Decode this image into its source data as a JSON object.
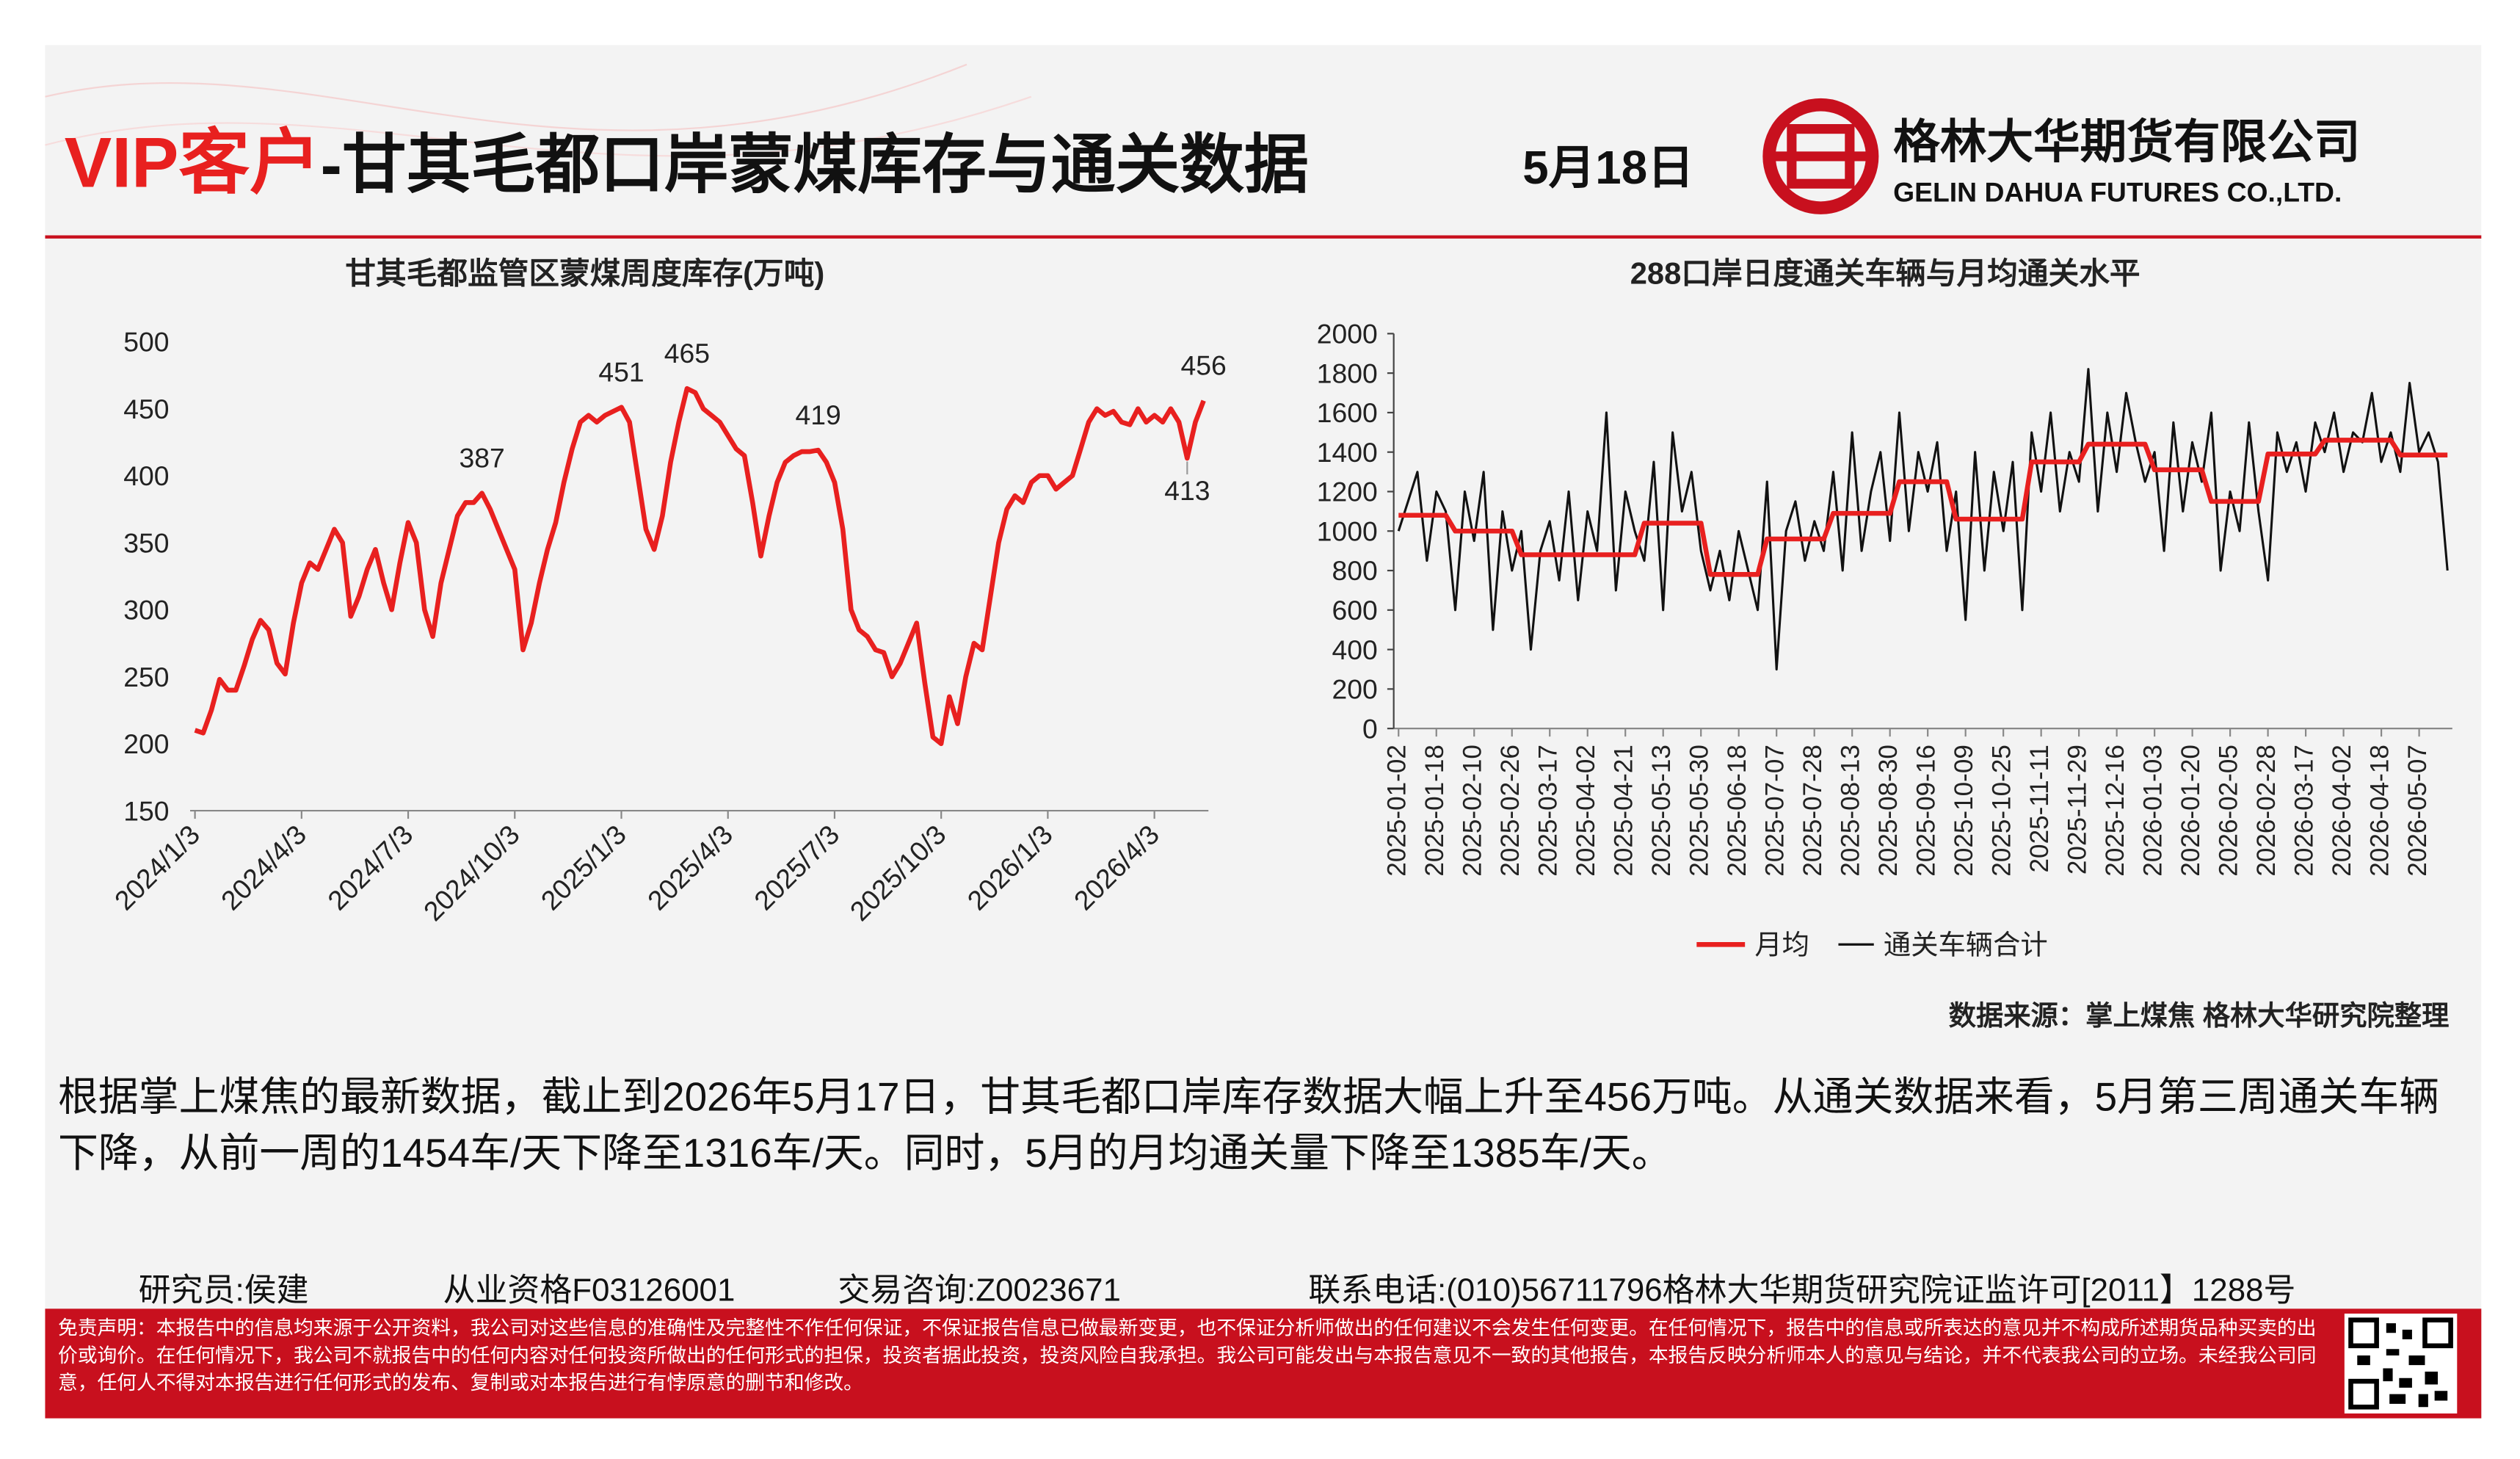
{
  "header": {
    "title_highlight": "VIP客户",
    "title": "-甘其毛都口岸蒙煤库存与通关数据",
    "date": "5月18日",
    "company": "格林大华期货有限公司",
    "company_en": "GELIN DAHUA FUTURES CO.,LTD."
  },
  "chart_data": [
    {
      "type": "line",
      "title": "甘其毛都监管区蒙煤周度库存(万吨)",
      "categories": [
        "2024/1/3",
        null,
        null,
        null,
        null,
        null,
        null,
        null,
        null,
        null,
        null,
        null,
        null,
        "2024/4/3",
        null,
        null,
        null,
        null,
        null,
        null,
        null,
        null,
        null,
        null,
        null,
        null,
        "2024/7/3",
        null,
        null,
        null,
        null,
        null,
        null,
        null,
        null,
        null,
        null,
        null,
        null,
        "2024/10/3",
        null,
        null,
        null,
        null,
        null,
        null,
        null,
        null,
        null,
        null,
        null,
        null,
        "2025/1/3",
        null,
        null,
        null,
        null,
        null,
        null,
        null,
        null,
        null,
        null,
        null,
        null,
        "2025/4/3",
        null,
        null,
        null,
        null,
        null,
        null,
        null,
        null,
        null,
        null,
        null,
        null,
        "2025/7/3",
        null,
        null,
        null,
        null,
        null,
        null,
        null,
        null,
        null,
        null,
        null,
        null,
        "2025/10/3",
        null,
        null,
        null,
        null,
        null,
        null,
        null,
        null,
        null,
        null,
        null,
        null,
        "2026/1/3",
        null,
        null,
        null,
        null,
        null,
        null,
        null,
        null,
        null,
        null,
        null,
        null,
        "2026/4/3",
        null,
        null,
        null,
        null,
        null,
        null
      ],
      "series": [
        {
          "color": "#e8201f",
          "values": [
            210,
            208,
            225,
            248,
            240,
            240,
            258,
            278,
            292,
            285,
            260,
            252,
            290,
            320,
            335,
            330,
            345,
            360,
            350,
            295,
            310,
            330,
            345,
            320,
            300,
            335,
            365,
            350,
            300,
            280,
            320,
            345,
            370,
            380,
            380,
            387,
            375,
            360,
            345,
            330,
            270,
            290,
            320,
            345,
            365,
            395,
            420,
            440,
            445,
            440,
            445,
            448,
            451,
            440,
            400,
            360,
            345,
            370,
            410,
            440,
            465,
            462,
            450,
            445,
            440,
            430,
            420,
            415,
            380,
            340,
            370,
            395,
            410,
            415,
            418,
            418,
            419,
            410,
            395,
            360,
            300,
            285,
            280,
            270,
            268,
            250,
            260,
            275,
            290,
            245,
            205,
            200,
            235,
            215,
            250,
            275,
            270,
            310,
            350,
            375,
            385,
            380,
            395,
            400,
            400,
            390,
            395,
            400,
            420,
            440,
            450,
            445,
            448,
            440,
            438,
            450,
            440,
            445,
            440,
            450,
            440,
            413,
            440,
            456
          ]
        }
      ],
      "ylim": [
        150,
        500
      ],
      "yticks": [
        150,
        200,
        250,
        300,
        350,
        400,
        450,
        500
      ]
    },
    {
      "type": "line",
      "title": "288口岸日度通关车辆与月均通关水平",
      "categories": [
        "2025-01-02",
        null,
        null,
        null,
        "2025-01-18",
        null,
        null,
        null,
        "2025-02-10",
        null,
        null,
        null,
        "2025-02-26",
        null,
        null,
        null,
        "2025-03-17",
        null,
        null,
        null,
        "2025-04-02",
        null,
        null,
        null,
        "2025-04-21",
        null,
        null,
        null,
        "2025-05-13",
        null,
        null,
        null,
        "2025-05-30",
        null,
        null,
        null,
        "2025-06-18",
        null,
        null,
        null,
        "2025-07-07",
        null,
        null,
        null,
        "2025-07-28",
        null,
        null,
        null,
        "2025-08-13",
        null,
        null,
        null,
        "2025-08-30",
        null,
        null,
        null,
        "2025-09-16",
        null,
        null,
        null,
        "2025-10-09",
        null,
        null,
        null,
        "2025-10-25",
        null,
        null,
        null,
        "2025-11-11",
        null,
        null,
        null,
        "2025-11-29",
        null,
        null,
        null,
        "2025-12-16",
        null,
        null,
        null,
        "2026-01-03",
        null,
        null,
        null,
        "2026-01-20",
        null,
        null,
        null,
        "2026-02-05",
        null,
        null,
        null,
        "2026-02-28",
        null,
        null,
        null,
        "2026-03-17",
        null,
        null,
        null,
        "2026-04-02",
        null,
        null,
        null,
        "2026-04-18",
        null,
        null,
        null,
        "2026-05-07",
        null,
        null,
        null
      ],
      "series": [
        {
          "name": "月均",
          "color": "#e8201f",
          "values": [
            1080,
            1080,
            1080,
            1080,
            1080,
            1080,
            1000,
            1000,
            1000,
            1000,
            1000,
            1000,
            1000,
            880,
            880,
            880,
            880,
            880,
            880,
            880,
            880,
            880,
            880,
            880,
            880,
            880,
            1040,
            1040,
            1040,
            1040,
            1040,
            1040,
            1040,
            780,
            780,
            780,
            780,
            780,
            780,
            960,
            960,
            960,
            960,
            960,
            960,
            960,
            1090,
            1090,
            1090,
            1090,
            1090,
            1090,
            1090,
            1250,
            1250,
            1250,
            1250,
            1250,
            1250,
            1060,
            1060,
            1060,
            1060,
            1060,
            1060,
            1060,
            1060,
            1350,
            1350,
            1350,
            1350,
            1350,
            1350,
            1440,
            1440,
            1440,
            1440,
            1440,
            1440,
            1440,
            1310,
            1310,
            1310,
            1310,
            1310,
            1310,
            1150,
            1150,
            1150,
            1150,
            1150,
            1150,
            1390,
            1390,
            1390,
            1390,
            1390,
            1390,
            1460,
            1460,
            1460,
            1460,
            1460,
            1460,
            1460,
            1460,
            1385,
            1385,
            1385,
            1385,
            1385,
            1385
          ]
        },
        {
          "name": "通关车辆合计",
          "color": "#111111",
          "values": [
            1000,
            1150,
            1300,
            850,
            1200,
            1100,
            600,
            1200,
            950,
            1300,
            500,
            1100,
            800,
            1000,
            400,
            900,
            1050,
            750,
            1200,
            650,
            1100,
            900,
            1600,
            700,
            1200,
            1000,
            850,
            1350,
            600,
            1500,
            1100,
            1300,
            900,
            700,
            900,
            650,
            1000,
            800,
            600,
            1250,
            300,
            1000,
            1150,
            850,
            1050,
            900,
            1300,
            800,
            1500,
            900,
            1200,
            1400,
            950,
            1600,
            1000,
            1400,
            1200,
            1450,
            900,
            1200,
            550,
            1400,
            800,
            1300,
            1000,
            1350,
            600,
            1500,
            1200,
            1600,
            1100,
            1400,
            1250,
            1820,
            1100,
            1600,
            1300,
            1700,
            1450,
            1250,
            1400,
            900,
            1550,
            1100,
            1450,
            1250,
            1600,
            800,
            1200,
            1000,
            1550,
            1100,
            750,
            1500,
            1300,
            1450,
            1200,
            1550,
            1400,
            1600,
            1300,
            1500,
            1450,
            1700,
            1350,
            1500,
            1300,
            1750,
            1400,
            1500,
            1350,
            800
          ]
        }
      ],
      "ylim": [
        0,
        2000
      ],
      "yticks": [
        0,
        200,
        400,
        600,
        800,
        1000,
        1200,
        1400,
        1600,
        1800,
        2000
      ]
    }
  ],
  "source": "数据来源：掌上煤焦 格林大华研究院整理",
  "summary": "根据掌上煤焦的最新数据，截止到2026年5月17日，甘其毛都口岸库存数据大幅上升至456万吨。从通关数据来看，5月第三周通关车辆下降，从前一周的1454车/天下降至1316车/天。同时，5月的月均通关量下降至1385车/天。",
  "footer": {
    "researcher": "研究员:侯建",
    "qualification": "从业资格F03126001",
    "consulting": "交易咨询:Z0023671",
    "contact": "联系电话:(010)56711796格林大华期货研究院证监许可[2011】1288号"
  },
  "disclaimer": "免责声明：本报告中的信息均来源于公开资料，我公司对这些信息的准确性及完整性不作任何保证，不保证报告信息已做最新变更，也不保证分析师做出的任何建议不会发生任何变更。在任何情况下，报告中的信息或所表达的意见并不构成所述期货品种买卖的出价或询价。在任何情况下，我公司不就报告中的任何内容对任何投资所做出的任何形式的担保，投资者据此投资，投资风险自我承担。我公司可能发出与本报告意见不一致的其他报告，本报告反映分析师本人的意见与结论，并不代表我公司的立场。未经我公司同意，任何人不得对本报告进行任何形式的发布、复制或对本报告进行有悖原意的删节和修改。"
}
